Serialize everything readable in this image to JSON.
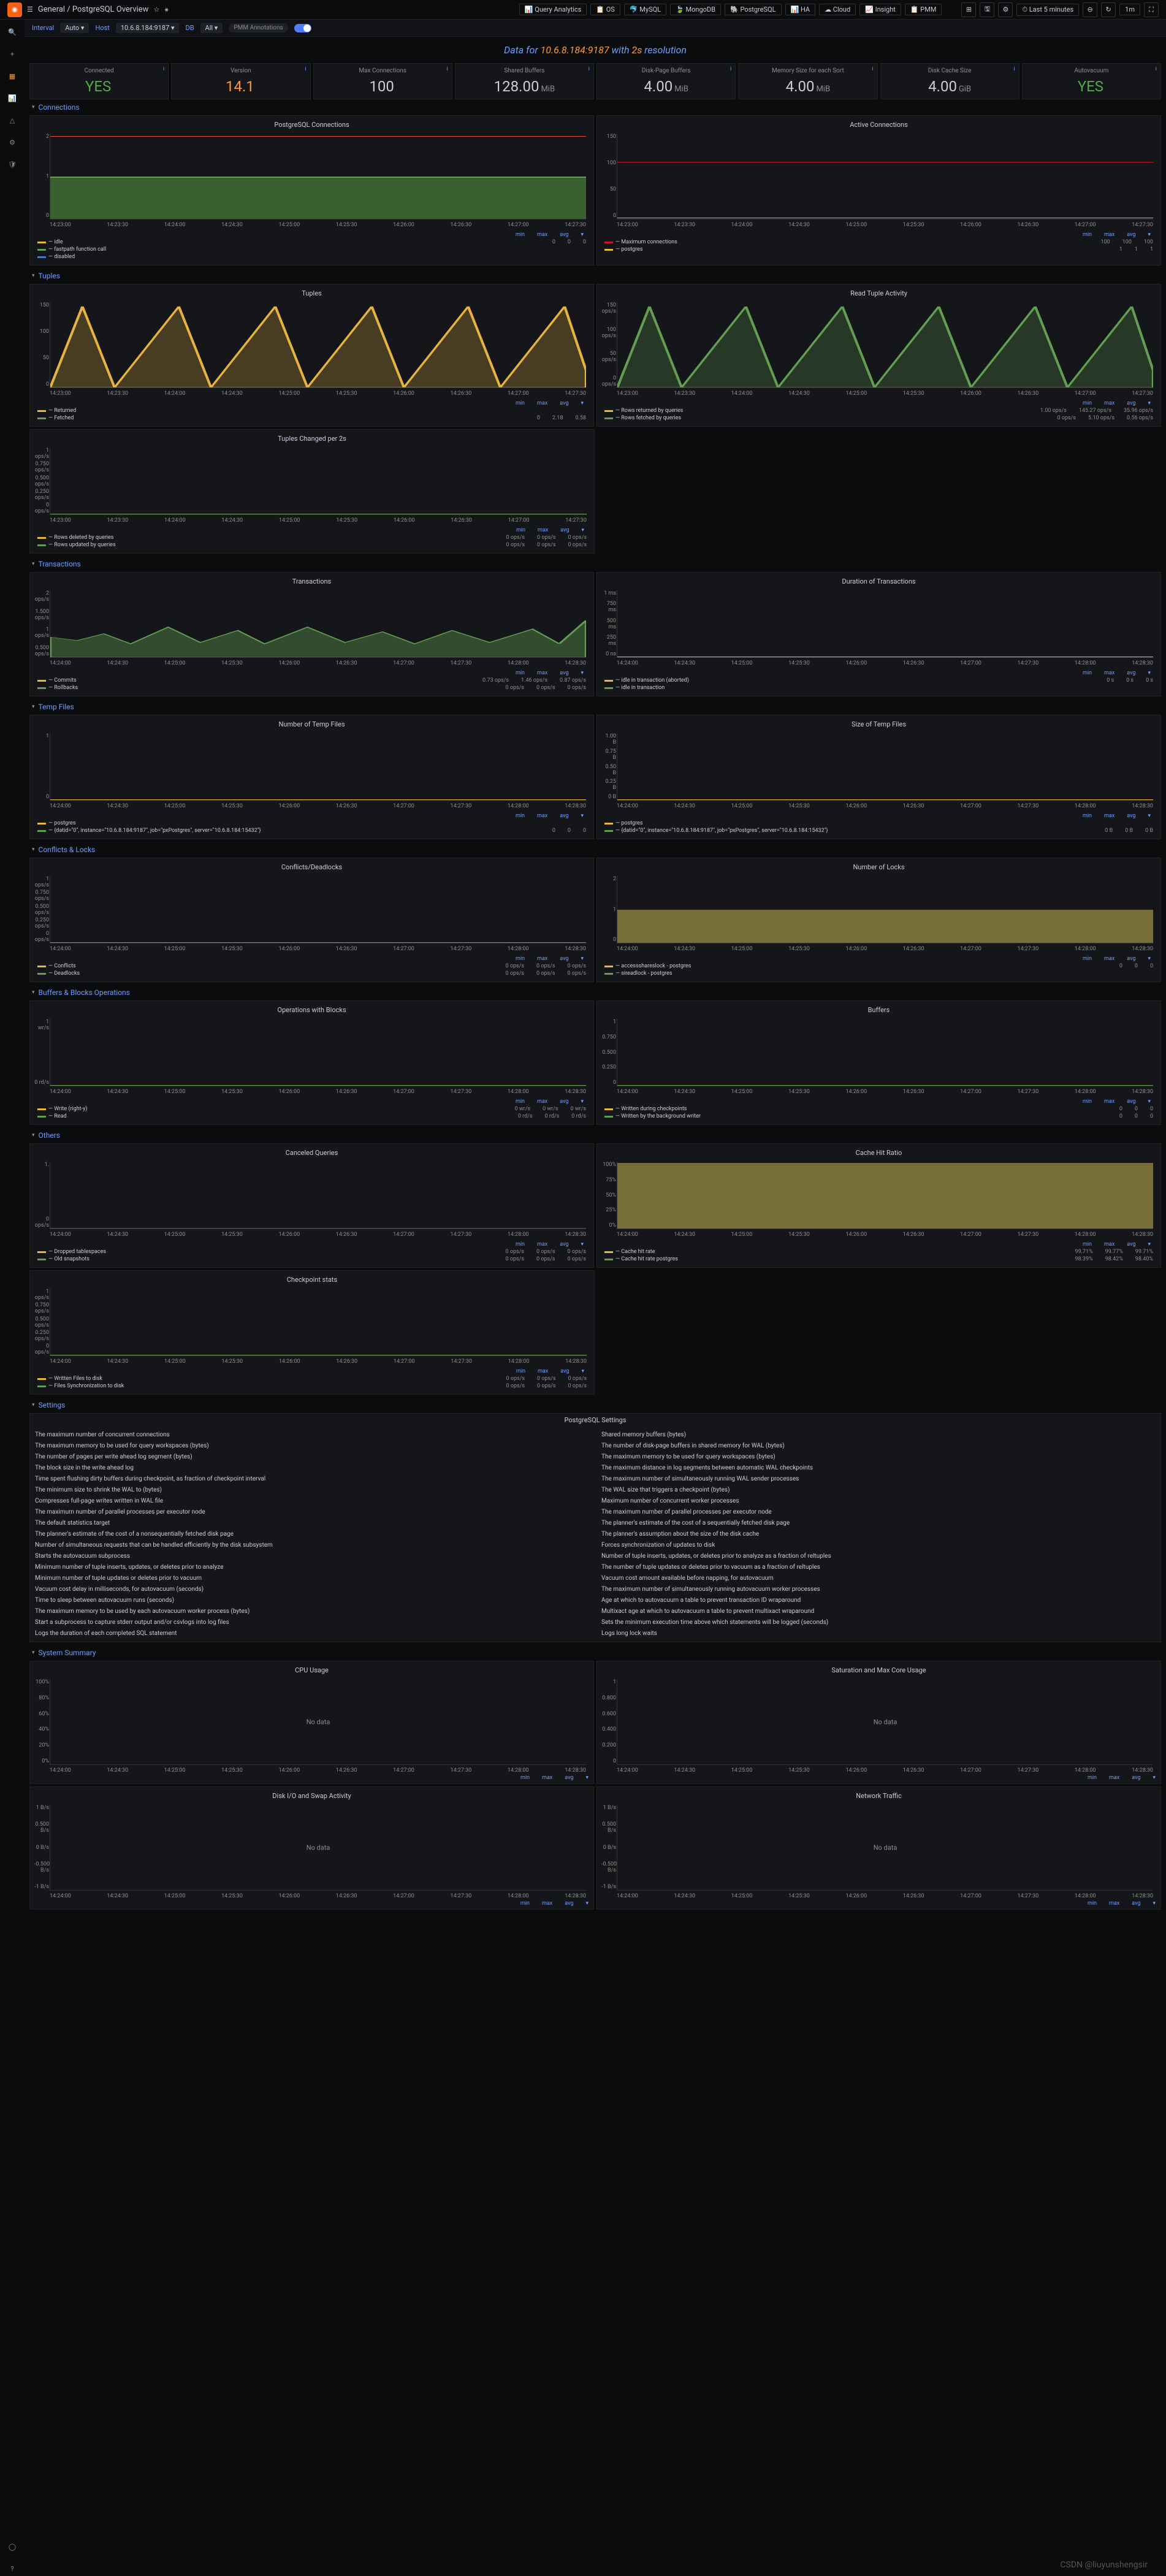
{
  "header": {
    "breadcrumb": "General / PostgreSQL Overview",
    "star": "☆",
    "share": "⚹",
    "query_analytics": "📊 Query Analytics",
    "os": "📋 OS",
    "mysql": "🐬 MySQL",
    "mongodb": "🍃 MongoDB",
    "postgresql": "🐘 PostgreSQL",
    "ha": "📊 HA",
    "cloud": "☁ Cloud",
    "insight": "📈 Insight",
    "pmm": "📋 PMM",
    "time_range": "⏱ Last 5 minutes",
    "refresh_interval": "1m"
  },
  "varbar": {
    "interval_label": "Interval",
    "interval_val": "Auto ▾",
    "host_label": "Host",
    "host_val": "10.6.8.184:9187 ▾",
    "db_label": "DB",
    "db_val": "All ▾",
    "pmm_ann": "PMM Annotations"
  },
  "data_for": {
    "prefix": "Data for ",
    "host": "10.6.8.184:9187",
    "with": " with ",
    "res": "2s",
    "suffix": " resolution"
  },
  "stats": [
    {
      "title": "Connected",
      "value": "YES",
      "unit": "",
      "color": "green"
    },
    {
      "title": "Version",
      "value": "14.1",
      "unit": "",
      "color": "orangev"
    },
    {
      "title": "Max Connections",
      "value": "100",
      "unit": "",
      "color": "white"
    },
    {
      "title": "Shared Buffers",
      "value": "128.00",
      "unit": "MiB",
      "color": "white"
    },
    {
      "title": "Disk-Page Buffers",
      "value": "4.00",
      "unit": "MiB",
      "color": "white"
    },
    {
      "title": "Memory Size for each Sort",
      "value": "4.00",
      "unit": "MiB",
      "color": "white"
    },
    {
      "title": "Disk Cache Size",
      "value": "4.00",
      "unit": "GiB",
      "color": "white"
    },
    {
      "title": "Autovacuum",
      "value": "YES",
      "unit": "",
      "color": "green"
    }
  ],
  "sections": {
    "connections": "Connections",
    "tuples": "Tuples",
    "transactions": "Transactions",
    "temp_files": "Temp Files",
    "conflicts_locks": "Conflicts & Locks",
    "buffers_blocks": "Buffers & Blocks Operations",
    "others": "Others",
    "settings": "Settings",
    "system_summary": "System Summary"
  },
  "xaxis_1": [
    "14:23:00",
    "14:23:30",
    "14:24:00",
    "14:24:30",
    "14:25:00",
    "14:25:30",
    "14:26:00",
    "14:26:30",
    "14:27:00",
    "14:27:30"
  ],
  "xaxis_2": [
    "14:24:00",
    "14:24:30",
    "14:25:00",
    "14:25:30",
    "14:26:00",
    "14:26:30",
    "14:27:00",
    "14:27:30",
    "14:28:00",
    "14:28:30"
  ],
  "xaxis_3": [
    "14:23:30",
    "14:24:00",
    "14:24:30",
    "14:25:00",
    "14:25:30",
    "14:26:00",
    "14:26:30",
    "14:27:00",
    "14:27:30",
    "14:28:00"
  ],
  "legend_cols": {
    "min": "min",
    "max": "max",
    "avg": "avg",
    "down": "▾"
  },
  "panels": {
    "pg_connections": {
      "title": "PostgreSQL Connections",
      "yaxis": [
        "2",
        "1",
        "0"
      ],
      "fill_color": "#3f6833",
      "top_line_color": "#e24d42",
      "legend": [
        {
          "name": "idle",
          "color": "#eab839",
          "vals": [
            "0",
            "0",
            "0"
          ]
        },
        {
          "name": "fastpath function call",
          "color": "#629e51",
          "vals": [
            "",
            "",
            ""
          ]
        },
        {
          "name": "disabled",
          "color": "#447ebc",
          "vals": [
            "",
            "",
            ""
          ]
        }
      ]
    },
    "active_connections": {
      "title": "Active Connections",
      "yaxis": [
        "150",
        "100",
        "50",
        "0"
      ],
      "line_color": "#c4162a",
      "legend": [
        {
          "name": "Maximum connections",
          "color": "#c4162a",
          "vals": [
            "100",
            "100",
            "100"
          ]
        },
        {
          "name": "postgres",
          "color": "#eab839",
          "vals": [
            "1",
            "1",
            "1"
          ]
        }
      ]
    },
    "tuples": {
      "title": "Tuples",
      "yaxis": [
        "150",
        "100",
        "50",
        "0"
      ],
      "wave_color": "#e5b33e",
      "legend": [
        {
          "name": "Returned",
          "color": "#eab839",
          "vals": [
            "",
            "",
            ""
          ]
        },
        {
          "name": "Fetched",
          "color": "#629e51",
          "vals": [
            "0",
            "2.18",
            "0.58"
          ]
        }
      ]
    },
    "read_tuple_activity": {
      "title": "Read Tuple Activity",
      "yaxis": [
        "150 ops/s",
        "100 ops/s",
        "50 ops/s",
        "0 ops/s"
      ],
      "wave_color": "#629e51",
      "legend": [
        {
          "name": "Rows returned by queries",
          "color": "#eab839",
          "vals": [
            "1.00 ops/s",
            "145.27 ops/s",
            "35.96 ops/s"
          ]
        },
        {
          "name": "Rows fetched by queries",
          "color": "#629e51",
          "vals": [
            "0 ops/s",
            "5.10 ops/s",
            "0.56 ops/s"
          ]
        }
      ]
    },
    "tuples_changed": {
      "title": "Tuples Changed per 2s",
      "yaxis": [
        "1 ops/s",
        "0.750 ops/s",
        "0.500 ops/s",
        "0.250 ops/s",
        "0 ops/s"
      ],
      "legend": [
        {
          "name": "Rows deleted by queries",
          "color": "#eab839",
          "vals": [
            "0 ops/s",
            "0 ops/s",
            "0 ops/s"
          ]
        },
        {
          "name": "Rows updated by queries",
          "color": "#629e51",
          "vals": [
            "0 ops/s",
            "0 ops/s",
            "0 ops/s"
          ]
        }
      ]
    },
    "transactions_panel": {
      "title": "Transactions",
      "yaxis": [
        "2 ops/s",
        "1.500 ops/s",
        "1 ops/s",
        "0.500 ops/s"
      ],
      "fill_color": "#629e51",
      "legend": [
        {
          "name": "Commits",
          "color": "#eab839",
          "vals": [
            "0.73 ops/s",
            "1.46 ops/s",
            "0.87 ops/s"
          ]
        },
        {
          "name": "Rollbacks",
          "color": "#629e51",
          "vals": [
            "0 ops/s",
            "0 ops/s",
            "0 ops/s"
          ]
        }
      ]
    },
    "duration_transactions": {
      "title": "Duration of Transactions",
      "yaxis": [
        "1 ms",
        "750 ms",
        "500 ms",
        "250 ms",
        "0 ns"
      ],
      "line_color": "#eab839",
      "legend": [
        {
          "name": "idle in transaction (aborted)",
          "color": "#eab839",
          "vals": [
            "0 s",
            "0 s",
            "0 s"
          ]
        },
        {
          "name": "idle in transaction",
          "color": "#629e51",
          "vals": [
            "",
            "",
            ""
          ]
        }
      ]
    },
    "num_temp_files": {
      "title": "Number of Temp Files",
      "yaxis": [
        "1",
        "0"
      ],
      "legend": [
        {
          "name": "postgres",
          "color": "#eab839",
          "vals": [
            "",
            "",
            ""
          ]
        },
        {
          "name": "{datid=\"0\", instance=\"10.6.8.184:9187\", job=\"pxPostgres\", server=\"10.6.8.184:15432\"}",
          "color": "#629e51",
          "vals": [
            "0",
            "0",
            "0"
          ]
        }
      ]
    },
    "size_temp_files": {
      "title": "Size of Temp Files",
      "yaxis": [
        "1.00 B",
        "0.75 B",
        "0.50 B",
        "0.25 B",
        "0 B"
      ],
      "legend": [
        {
          "name": "postgres",
          "color": "#eab839",
          "vals": [
            "",
            "",
            ""
          ]
        },
        {
          "name": "{datid=\"0\", instance=\"10.6.8.184:9187\", job=\"pxPostgres\", server=\"10.6.8.184:15432\"}",
          "color": "#629e51",
          "vals": [
            "0 B",
            "0 B",
            "0 B"
          ]
        }
      ]
    },
    "conflicts_deadlocks": {
      "title": "Conflicts/Deadlocks",
      "yaxis": [
        "1 ops/s",
        "0.750 ops/s",
        "0.500 ops/s",
        "0.250 ops/s",
        "0 ops/s"
      ],
      "legend": [
        {
          "name": "Conflicts",
          "color": "#eab839",
          "vals": [
            "0 ops/s",
            "0 ops/s",
            "0 ops/s"
          ]
        },
        {
          "name": "Deadlocks",
          "color": "#629e51",
          "vals": [
            "0 ops/s",
            "0 ops/s",
            "0 ops/s"
          ]
        }
      ]
    },
    "num_locks": {
      "title": "Number of Locks",
      "yaxis": [
        "2",
        "1",
        "0"
      ],
      "fill_color": "#b7a84e",
      "legend": [
        {
          "name": "accessshareslock - postgres",
          "color": "#eab839",
          "vals": [
            "0",
            "0",
            "0"
          ]
        },
        {
          "name": "sireadlock - postgres",
          "color": "#629e51",
          "vals": [
            "",
            "",
            ""
          ]
        }
      ]
    },
    "ops_blocks": {
      "title": "Operations with Blocks",
      "yaxis": [
        "1 wr/s",
        "0 rd/s"
      ],
      "legend": [
        {
          "name": "Write (right-y)",
          "color": "#eab839",
          "vals": [
            "0 wr/s",
            "0 wr/s",
            "0 wr/s"
          ]
        },
        {
          "name": "Read",
          "color": "#629e51",
          "vals": [
            "0 rd/s",
            "0 rd/s",
            "0 rd/s"
          ]
        }
      ]
    },
    "buffers": {
      "title": "Buffers",
      "yaxis": [
        "1",
        "0.750",
        "0.500",
        "0.250",
        "0"
      ],
      "legend": [
        {
          "name": "Written during checkpoints",
          "color": "#eab839",
          "vals": [
            "0",
            "0",
            "0"
          ]
        },
        {
          "name": "Written by the background writer",
          "color": "#629e51",
          "vals": [
            "0",
            "0",
            "0"
          ]
        }
      ]
    },
    "canceled_queries": {
      "title": "Canceled Queries",
      "yaxis": [
        "1.",
        "0 ops/s"
      ],
      "legend": [
        {
          "name": "Dropped tablespaces",
          "color": "#eab839",
          "vals": [
            "0 ops/s",
            "0 ops/s",
            "0 ops/s"
          ]
        },
        {
          "name": "Old snapshots",
          "color": "#629e51",
          "vals": [
            "0 ops/s",
            "0 ops/s",
            "0 ops/s"
          ]
        }
      ]
    },
    "cache_hit": {
      "title": "Cache Hit Ratio",
      "yaxis": [
        "100%",
        "75%",
        "50%",
        "25%",
        "0%"
      ],
      "fill_color": "#b7a84e",
      "legend": [
        {
          "name": "Cache hit rate",
          "color": "#eab839",
          "vals": [
            "99.71%",
            "99.77%",
            "99.71%"
          ]
        },
        {
          "name": "Cache hit rate postgres",
          "color": "#629e51",
          "vals": [
            "98.39%",
            "98.42%",
            "98.40%"
          ]
        }
      ]
    },
    "checkpoint_stats": {
      "title": "Checkpoint stats",
      "yaxis": [
        "1 ops/s",
        "0.750 ops/s",
        "0.500 ops/s",
        "0.250 ops/s",
        "0 ops/s"
      ],
      "legend": [
        {
          "name": "Written Files to disk",
          "color": "#eab839",
          "vals": [
            "0 ops/s",
            "0 ops/s",
            "0 ops/s"
          ]
        },
        {
          "name": "Files Synchronization to disk",
          "color": "#629e51",
          "vals": [
            "0 ops/s",
            "0 ops/s",
            "0 ops/s"
          ]
        }
      ]
    },
    "cpu_usage": {
      "title": "CPU Usage",
      "yaxis": [
        "100%",
        "80%",
        "60%",
        "40%",
        "20%",
        "0%"
      ],
      "nodata": "No data"
    },
    "saturation_core": {
      "title": "Saturation and Max Core Usage",
      "yaxis": [
        "1",
        "0.800",
        "0.600",
        "0.400",
        "0.200",
        "0"
      ],
      "nodata": "No data"
    },
    "disk_io": {
      "title": "Disk I/O and Swap Activity",
      "yaxis": [
        "1 B/s",
        "0.500 B/s",
        "0 B/s",
        "-0.500 B/s",
        "-1 B/s"
      ],
      "ylabel": "Page Out (-) / Page In (+)",
      "nodata": "No data"
    },
    "network_traffic": {
      "title": "Network Traffic",
      "yaxis": [
        "1 B/s",
        "0.500 B/s",
        "0 B/s",
        "-0.500 B/s",
        "-1 B/s"
      ],
      "ylabel": "Outbound (-) / Inbound (+)",
      "nodata": "No data"
    }
  },
  "settings_title": "PostgreSQL Settings",
  "settings_left": [
    "The maximum number of concurrent connections",
    "The maximum memory to be used for query workspaces (bytes)",
    "The number of pages per write ahead log segment (bytes)",
    "The block size in the write ahead log",
    "Time spent flushing dirty buffers during checkpoint, as fraction of checkpoint interval",
    "The minimum size to shrink the WAL to (bytes)",
    "Compresses full-page writes written in WAL file",
    "The maximum number of parallel processes per executor node",
    "The default statistics target",
    "The planner's estimate of the cost of a nonsequentially fetched disk page",
    "Number of simultaneous requests that can be handled efficiently by the disk subsystem",
    "Starts the autovacuum subprocess",
    "Minimum number of tuple inserts, updates, or deletes prior to analyze",
    "Minimum number of tuple updates or deletes prior to vacuum",
    "Vacuum cost delay in milliseconds, for autovacuum (seconds)",
    "Time to sleep between autovacuum runs (seconds)",
    "The maximum memory to be used by each autovacuum worker process (bytes)",
    "Start a subprocess to capture stderr output and/or csvlogs into log files",
    "Logs the duration of each completed SQL statement"
  ],
  "settings_right": [
    "Shared memory buffers (bytes)",
    "The number of disk-page buffers in shared memory for WAL (bytes)",
    "The maximum memory to be used for query workspaces (bytes)",
    "The maximum distance in log segments between automatic WAL checkpoints",
    "The maximum number of simultaneously running WAL sender processes",
    "The WAL size that triggers a checkpoint (bytes)",
    "Maximum number of concurrent worker processes",
    "The maximum number of parallel processes per executor node",
    "The planner's estimate of the cost of a sequentially fetched disk page",
    "The planner's assumption about the size of the disk cache",
    "Forces synchronization of updates to disk",
    "Number of tuple inserts, updates, or deletes prior to analyze as a fraction of reltuples",
    "The number of tuple updates or deletes prior to vacuum as a fraction of reltuples",
    "Vacuum cost amount available before napping, for autovacuum",
    "The maximum number of simultaneously running autovacuum worker processes",
    "Age at which to autovacuum a table to prevent transaction ID wraparound",
    "Multixact age at which to autovacuum a table to prevent multixact wraparound",
    "Sets the minimum execution time above which statements will be logged (seconds)",
    "Logs long lock waits"
  ],
  "watermark": "CSDN @liuyunshengsir"
}
